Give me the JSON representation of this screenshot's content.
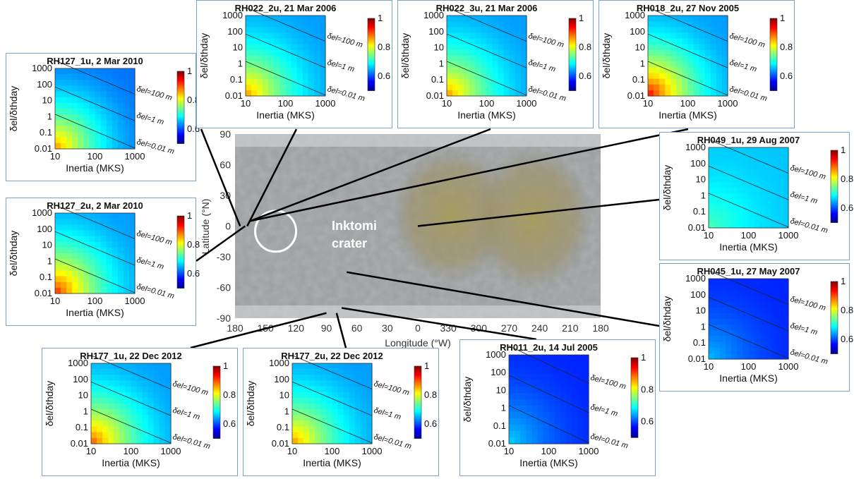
{
  "colors": {
    "border": "#7aa3c9",
    "connector": "#000000",
    "crater_circle": "#ffffff"
  },
  "map": {
    "xlabel": "Longitude (°W)",
    "ylabel": "Latitude (°N)",
    "xticks": [
      "180",
      "150",
      "120",
      "90",
      "60",
      "30",
      "0",
      "330",
      "300",
      "270",
      "240",
      "210",
      "180"
    ],
    "yticks": [
      "90",
      "60",
      "30",
      "0",
      "-30",
      "-60",
      "-90"
    ],
    "crater_label_1": "Inktomi",
    "crater_label_2": "crater",
    "crater_center": {
      "lon_w": 140,
      "lat": -5
    }
  },
  "chart_data": [
    {
      "type": "heatmap",
      "title": "RH127_1u, 2 Mar 2010",
      "location": {
        "lon_w": 175,
        "lat": 0
      },
      "xlabel": "Inertia (MKS)",
      "ylabel": "δel/δthday",
      "xticks": [
        "10",
        "100",
        "1000"
      ],
      "yticks": [
        "1000",
        "100",
        "10",
        "1",
        "0.1",
        "0.01"
      ],
      "xlim": [
        10,
        1000
      ],
      "ylim": [
        0.01,
        1000
      ],
      "x_scale": "log",
      "y_scale": "log",
      "colorbar": {
        "ticks": [
          "1",
          "0.8",
          "0.6"
        ],
        "range": [
          0.5,
          1
        ]
      },
      "contours": [
        "δel=100 m",
        "δel=1 m",
        "δel=0.01 m"
      ],
      "max_value": 0.85,
      "min_value": 0.62
    },
    {
      "type": "heatmap",
      "title": "RH022_2u, 21 Mar 2006",
      "location": {
        "lon_w": 168,
        "lat": 0
      },
      "xlabel": "Inertia (MKS)",
      "ylabel": "δel/δthday",
      "xticks": [
        "10",
        "100",
        "1000"
      ],
      "yticks": [
        "1000",
        "100",
        "10",
        "1",
        "0.1",
        "0.01"
      ],
      "xlim": [
        10,
        1000
      ],
      "ylim": [
        0.01,
        1000
      ],
      "x_scale": "log",
      "y_scale": "log",
      "colorbar": {
        "ticks": [
          "1",
          "0.8",
          "0.6"
        ],
        "range": [
          0.5,
          1
        ]
      },
      "contours": [
        "δel=100 m",
        "δel=1 m",
        "δel=0.01 m"
      ],
      "max_value": 0.85,
      "min_value": 0.64
    },
    {
      "type": "heatmap",
      "title": "RH022_3u, 21 Mar 2006",
      "location": {
        "lon_w": 165,
        "lat": 5
      },
      "xlabel": "Inertia (MKS)",
      "ylabel": "δel/δthday",
      "xticks": [
        "10",
        "100",
        "1000"
      ],
      "yticks": [
        "1000",
        "100",
        "10",
        "1",
        "0.1",
        "0.01"
      ],
      "xlim": [
        10,
        1000
      ],
      "ylim": [
        0.01,
        1000
      ],
      "x_scale": "log",
      "y_scale": "log",
      "colorbar": {
        "ticks": [
          "1",
          "0.8",
          "0.6"
        ],
        "range": [
          0.5,
          1
        ]
      },
      "contours": [
        "δel=100 m",
        "δel=1 m",
        "δel=0.01 m"
      ],
      "max_value": 0.85,
      "min_value": 0.64
    },
    {
      "type": "heatmap",
      "title": "RH018_2u, 27 Nov 2005",
      "location": {
        "lon_w": 165,
        "lat": 5
      },
      "xlabel": "Inertia (MKS)",
      "ylabel": "δel/δthday",
      "xticks": [
        "10",
        "100",
        "1000"
      ],
      "yticks": [
        "1000",
        "100",
        "10",
        "1",
        "0.1",
        "0.01"
      ],
      "xlim": [
        10,
        1000
      ],
      "ylim": [
        0.01,
        1000
      ],
      "x_scale": "log",
      "y_scale": "log",
      "colorbar": {
        "ticks": [
          "1",
          "0.8",
          "0.6"
        ],
        "range": [
          0.5,
          1
        ]
      },
      "contours": [
        "δel=100 m",
        "δel=1 m",
        "δel=0.01 m"
      ],
      "max_value": 0.92,
      "min_value": 0.64
    },
    {
      "type": "heatmap",
      "title": "RH127_2u, 2 Mar 2010",
      "location": {
        "lon_w": 170,
        "lat": 0
      },
      "xlabel": "Inertia (MKS)",
      "ylabel": "δel/δthday",
      "xticks": [
        "10",
        "100",
        "1000"
      ],
      "yticks": [
        "1000",
        "100",
        "10",
        "1",
        "0.1",
        "0.01"
      ],
      "xlim": [
        10,
        1000
      ],
      "ylim": [
        0.01,
        1000
      ],
      "x_scale": "log",
      "y_scale": "log",
      "colorbar": {
        "ticks": [
          "1",
          "0.8",
          "0.6"
        ],
        "range": [
          0.5,
          1
        ]
      },
      "contours": [
        "δel=100 m",
        "δel=1 m",
        "δel=0.01 m"
      ],
      "max_value": 0.9,
      "min_value": 0.64
    },
    {
      "type": "heatmap",
      "title": "RH049_1u, 29 Aug 2007",
      "location": {
        "lon_w": 0,
        "lat": 0
      },
      "xlabel": "Inertia (MKS)",
      "ylabel": "δel/δthday",
      "xticks": [
        "10",
        "100",
        "1000"
      ],
      "yticks": [
        "1000",
        "100",
        "10",
        "1",
        "0.1",
        "0.01"
      ],
      "xlim": [
        10,
        1000
      ],
      "ylim": [
        0.01,
        1000
      ],
      "x_scale": "log",
      "y_scale": "log",
      "colorbar": {
        "ticks": [
          "1",
          "0.8",
          "0.6"
        ],
        "range": [
          0.5,
          1
        ]
      },
      "contours": [
        "δel=100 m",
        "δel=1 m",
        "δel=0.01 m"
      ],
      "max_value": 0.72,
      "min_value": 0.66
    },
    {
      "type": "heatmap",
      "title": "RH045_1u, 27 May 2007",
      "location": {
        "lon_w": 70,
        "lat": -45
      },
      "xlabel": "Inertia (MKS)",
      "ylabel": "δel/δthday",
      "xticks": [
        "10",
        "100",
        "1000"
      ],
      "yticks": [
        "1000",
        "100",
        "10",
        "1",
        "0.1",
        "0.01"
      ],
      "xlim": [
        10,
        1000
      ],
      "ylim": [
        0.01,
        1000
      ],
      "x_scale": "log",
      "y_scale": "log",
      "colorbar": {
        "ticks": [
          "1",
          "0.8",
          "0.6"
        ],
        "range": [
          0.5,
          1
        ]
      },
      "contours": [
        "δel=100 m",
        "δel=1 m",
        "δel=0.01 m"
      ],
      "max_value": 0.65,
      "min_value": 0.58
    },
    {
      "type": "heatmap",
      "title": "RH177_1u, 22 Dec 2012",
      "location": {
        "lon_w": 90,
        "lat": -85
      },
      "xlabel": "Inertia (MKS)",
      "ylabel": "δel/δthday",
      "xticks": [
        "10",
        "100",
        "1000"
      ],
      "yticks": [
        "1000",
        "100",
        "10",
        "1",
        "0.1",
        "0.01"
      ],
      "xlim": [
        10,
        1000
      ],
      "ylim": [
        0.01,
        1000
      ],
      "x_scale": "log",
      "y_scale": "log",
      "colorbar": {
        "ticks": [
          "1",
          "0.8",
          "0.6"
        ],
        "range": [
          0.5,
          1
        ]
      },
      "contours": [
        "δel=100 m",
        "δel=1 m",
        "δel=0.01 m"
      ],
      "max_value": 0.88,
      "min_value": 0.64
    },
    {
      "type": "heatmap",
      "title": "RH177_2u, 22 Dec 2012",
      "location": {
        "lon_w": 80,
        "lat": -85
      },
      "xlabel": "Inertia (MKS)",
      "ylabel": "δel/δthday",
      "xticks": [
        "10",
        "100",
        "1000"
      ],
      "yticks": [
        "1000",
        "100",
        "10",
        "1",
        "0.1",
        "0.01"
      ],
      "xlim": [
        10,
        1000
      ],
      "ylim": [
        0.01,
        1000
      ],
      "x_scale": "log",
      "y_scale": "log",
      "colorbar": {
        "ticks": [
          "1",
          "0.8",
          "0.6"
        ],
        "range": [
          0.5,
          1
        ]
      },
      "contours": [
        "δel=100 m",
        "δel=1 m",
        "δel=0.01 m"
      ],
      "max_value": 0.85,
      "min_value": 0.64
    },
    {
      "type": "heatmap",
      "title": "RH011_2u, 14 Jul 2005",
      "location": {
        "lon_w": 75,
        "lat": -80
      },
      "xlabel": "Inertia (MKS)",
      "ylabel": "δel/δthday",
      "xticks": [
        "10",
        "100",
        "1000"
      ],
      "yticks": [
        "1000",
        "100",
        "10",
        "1",
        "0.1",
        "0.01"
      ],
      "xlim": [
        10,
        1000
      ],
      "ylim": [
        0.01,
        1000
      ],
      "x_scale": "log",
      "y_scale": "log",
      "colorbar": {
        "ticks": [
          "1",
          "0.8",
          "0.6"
        ],
        "range": [
          0.5,
          1
        ]
      },
      "contours": [
        "δel=100 m",
        "δel=1 m",
        "δel=0.01 m"
      ],
      "max_value": 0.66,
      "min_value": 0.58
    }
  ]
}
